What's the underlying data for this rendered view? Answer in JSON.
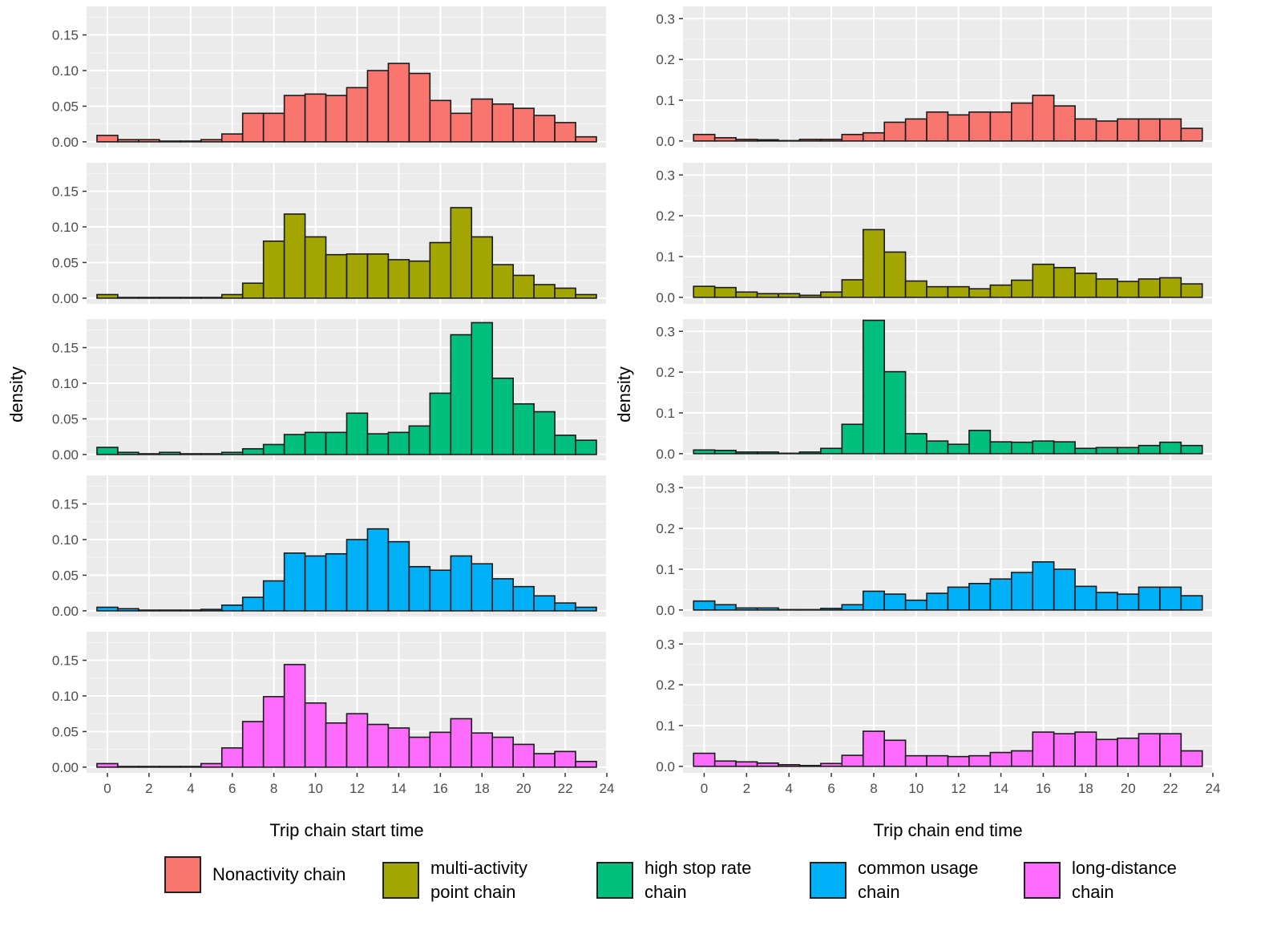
{
  "colors": {
    "panel_bg": "#ebebeb",
    "grid_major": "#ffffff",
    "grid_minor": "#f5f5f5",
    "bar_border": "#1a1a1a",
    "tick_text": "#4d4d4d"
  },
  "legend": [
    {
      "label": "Nonactivity chain",
      "color": "#f8766d"
    },
    {
      "label": "multi-activity\npoint chain",
      "color": "#a3a500"
    },
    {
      "label": "high stop rate\nchain",
      "color": "#00bf7d"
    },
    {
      "label": "common usage\nchain",
      "color": "#00b0f6"
    },
    {
      "label": "long-distance\nchain",
      "color": "#fd6cfd"
    }
  ],
  "chart_data": [
    {
      "type": "bar",
      "title": "",
      "xlabel": "Trip chain start time",
      "ylabel": "density",
      "xlim": [
        -1,
        24
      ],
      "ylim": [
        -0.008,
        0.19
      ],
      "x_ticks": [
        "0",
        "2",
        "4",
        "6",
        "8",
        "10",
        "12",
        "14",
        "16",
        "18",
        "20",
        "22",
        "24"
      ],
      "y_ticks": [
        "0.00",
        "0.05",
        "0.10",
        "0.15"
      ],
      "bin_starts": [
        0,
        1,
        2,
        3,
        4,
        5,
        6,
        7,
        8,
        9,
        10,
        11,
        12,
        13,
        14,
        15,
        16,
        17,
        18,
        19,
        20,
        21,
        22,
        23
      ],
      "series": [
        {
          "name": "Nonactivity chain",
          "values": [
            0.009,
            0.003,
            0.003,
            0.001,
            0.001,
            0.003,
            0.011,
            0.04,
            0.04,
            0.065,
            0.067,
            0.065,
            0.076,
            0.1,
            0.11,
            0.096,
            0.058,
            0.04,
            0.06,
            0.053,
            0.047,
            0.037,
            0.027,
            0.007
          ]
        },
        {
          "name": "multi-activity point chain",
          "values": [
            0.005,
            0.001,
            0.001,
            0.001,
            0.001,
            0.001,
            0.005,
            0.021,
            0.08,
            0.118,
            0.086,
            0.061,
            0.062,
            0.062,
            0.054,
            0.052,
            0.078,
            0.127,
            0.086,
            0.047,
            0.032,
            0.019,
            0.014,
            0.005
          ]
        },
        {
          "name": "high stop rate chain",
          "values": [
            0.01,
            0.003,
            0.001,
            0.003,
            0.001,
            0.001,
            0.003,
            0.008,
            0.014,
            0.028,
            0.031,
            0.031,
            0.058,
            0.029,
            0.031,
            0.04,
            0.086,
            0.168,
            0.185,
            0.107,
            0.071,
            0.06,
            0.027,
            0.02
          ]
        },
        {
          "name": "common usage chain",
          "values": [
            0.005,
            0.003,
            0.001,
            0.001,
            0.001,
            0.002,
            0.008,
            0.019,
            0.042,
            0.081,
            0.077,
            0.08,
            0.1,
            0.115,
            0.097,
            0.062,
            0.057,
            0.077,
            0.066,
            0.045,
            0.034,
            0.021,
            0.011,
            0.005
          ]
        },
        {
          "name": "long-distance chain",
          "values": [
            0.005,
            0.001,
            0.001,
            0.001,
            0.001,
            0.005,
            0.027,
            0.064,
            0.099,
            0.144,
            0.09,
            0.062,
            0.075,
            0.06,
            0.055,
            0.042,
            0.049,
            0.068,
            0.048,
            0.042,
            0.032,
            0.019,
            0.022,
            0.008
          ]
        }
      ]
    },
    {
      "type": "bar",
      "title": "",
      "xlabel": "Trip chain end time",
      "ylabel": "density",
      "xlim": [
        -1,
        24
      ],
      "ylim": [
        -0.016,
        0.33
      ],
      "x_ticks": [
        "0",
        "2",
        "4",
        "6",
        "8",
        "10",
        "12",
        "14",
        "16",
        "18",
        "20",
        "22",
        "24"
      ],
      "y_ticks": [
        "0.0",
        "0.1",
        "0.2",
        "0.3"
      ],
      "bin_starts": [
        0,
        1,
        2,
        3,
        4,
        5,
        6,
        7,
        8,
        9,
        10,
        11,
        12,
        13,
        14,
        15,
        16,
        17,
        18,
        19,
        20,
        21,
        22,
        23
      ],
      "series": [
        {
          "name": "Nonactivity chain",
          "values": [
            0.016,
            0.008,
            0.004,
            0.003,
            0.001,
            0.004,
            0.004,
            0.016,
            0.02,
            0.046,
            0.054,
            0.071,
            0.064,
            0.071,
            0.071,
            0.093,
            0.112,
            0.086,
            0.054,
            0.049,
            0.054,
            0.054,
            0.054,
            0.031
          ]
        },
        {
          "name": "multi-activity point chain",
          "values": [
            0.027,
            0.024,
            0.013,
            0.009,
            0.009,
            0.005,
            0.013,
            0.043,
            0.166,
            0.111,
            0.04,
            0.026,
            0.026,
            0.021,
            0.03,
            0.042,
            0.081,
            0.073,
            0.059,
            0.045,
            0.039,
            0.045,
            0.048,
            0.033
          ]
        },
        {
          "name": "high stop rate chain",
          "values": [
            0.009,
            0.008,
            0.004,
            0.004,
            0.001,
            0.004,
            0.013,
            0.072,
            0.327,
            0.201,
            0.049,
            0.031,
            0.023,
            0.057,
            0.029,
            0.028,
            0.031,
            0.029,
            0.013,
            0.015,
            0.015,
            0.02,
            0.028,
            0.02
          ]
        },
        {
          "name": "common usage chain",
          "values": [
            0.022,
            0.013,
            0.005,
            0.005,
            0.001,
            0.001,
            0.004,
            0.013,
            0.046,
            0.039,
            0.024,
            0.041,
            0.056,
            0.065,
            0.076,
            0.092,
            0.118,
            0.1,
            0.058,
            0.043,
            0.039,
            0.056,
            0.056,
            0.035
          ]
        },
        {
          "name": "long-distance chain",
          "values": [
            0.032,
            0.013,
            0.011,
            0.008,
            0.004,
            0.002,
            0.007,
            0.027,
            0.086,
            0.064,
            0.026,
            0.026,
            0.024,
            0.026,
            0.034,
            0.038,
            0.084,
            0.08,
            0.084,
            0.066,
            0.069,
            0.08,
            0.08,
            0.038
          ]
        }
      ]
    }
  ]
}
